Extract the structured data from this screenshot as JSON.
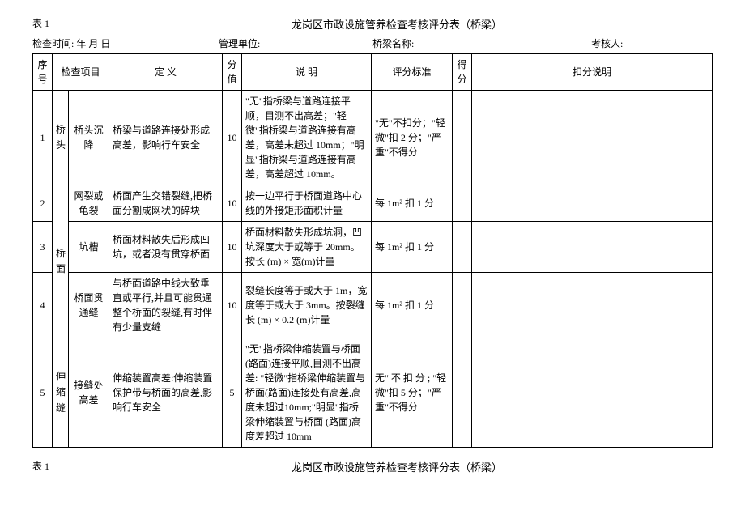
{
  "tableLabel": "表 1",
  "title": "龙岗区市政设施管养检查考核评分表（桥梁）",
  "meta": {
    "inspectTime": "检查时间:        年    月    日",
    "unit": "管理单位:",
    "bridgeName": "桥梁名称:",
    "assessor": "考核人:"
  },
  "headers": {
    "seq": "序号",
    "item": "检查项目",
    "def": "定  义",
    "scoreValue": "分值",
    "desc": "说  明",
    "std": "评分标准",
    "score": "得分",
    "deduct": "扣分说明"
  },
  "categories": {
    "head": "桥头",
    "surface": "桥面",
    "joint": "伸缩缝"
  },
  "rows": [
    {
      "seq": "1",
      "item": "桥头沉降",
      "def": "桥梁与道路连接处形成高差，影响行车安全",
      "scoreValue": "10",
      "desc": "\"无\"指桥梁与道路连接平顺，目测不出高差；\"轻微\"指桥梁与道路连接有高差，高差未超过 10mm；\"明显\"指桥梁与道路连接有高差，高差超过 10mm。",
      "std": "\"无\"不扣分；\"轻微\"扣 2 分；\"严重\"不得分"
    },
    {
      "seq": "2",
      "item": "网裂或龟裂",
      "def": "桥面产生交错裂缝,把桥面分割成网状的碎块",
      "scoreValue": "10",
      "desc": "按一边平行于桥面道路中心线的外接矩形面积计量",
      "std": "每 1m² 扣 1 分"
    },
    {
      "seq": "3",
      "item": "坑槽",
      "def": "桥面材料散失后形成凹坑，或者没有贯穿桥面",
      "scoreValue": "10",
      "desc": "桥面材料散失形成坑洞，凹坑深度大于或等于 20mm。按长 (m) × 宽(m)计量",
      "std": "每 1m² 扣 1 分"
    },
    {
      "seq": "4",
      "item": "桥面贯通缝",
      "def": "与桥面道路中线大致垂直或平行,并且可能贯通整个桥面的裂缝,有时伴有少量支缝",
      "scoreValue": "10",
      "desc": "裂缝长度等于或大于 1m，宽度等于或大于 3mm。按裂缝长 (m) × 0.2 (m)计量",
      "std": "每 1m² 扣 1 分"
    },
    {
      "seq": "5",
      "item": "接缝处高差",
      "def": "伸缩装置高差:伸缩装置保护带与桥面的高差,影响行车安全",
      "scoreValue": "5",
      "desc": "\"无\"指桥梁伸缩装置与桥面(路面)连接平顺,目测不出高差: \"轻微\"指桥梁伸缩装置与桥面(路面)连接处有高差,高度未超过10mm;\"明显\"指桥梁伸缩装置与桥面 (路面)高度差超过 10mm",
      "std": "无\" 不 扣 分 ; \"轻微\"扣 5 分；\"严重\"不得分"
    }
  ],
  "postTitle": "龙岗区市政设施管养检查考核评分表（桥梁）"
}
